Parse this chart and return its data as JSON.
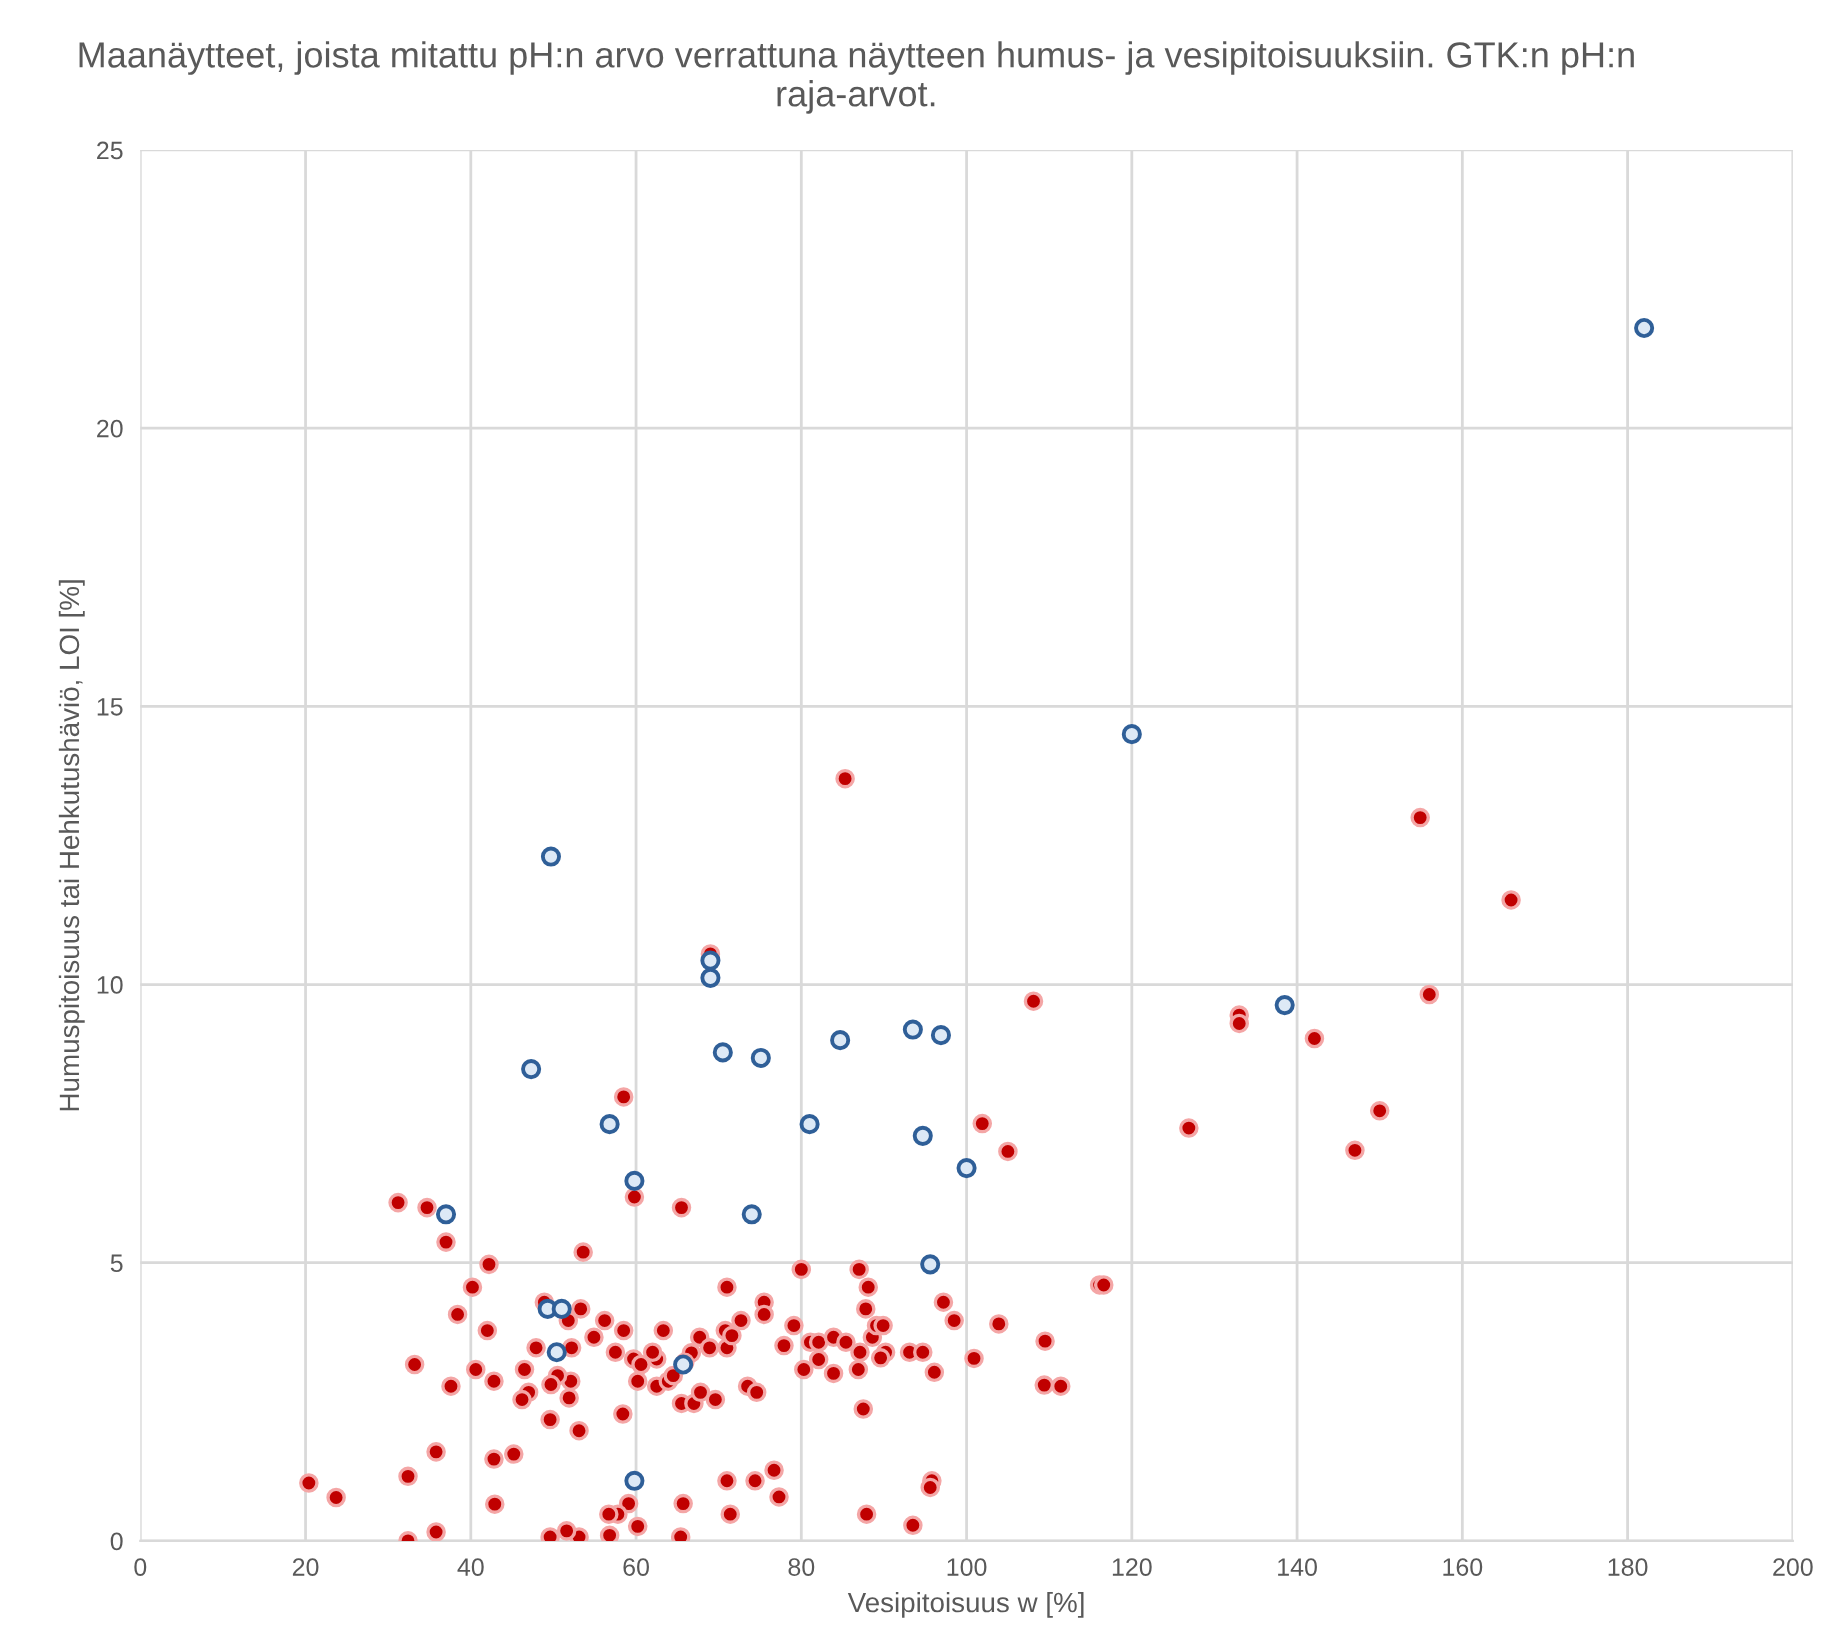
{
  "chart_data": {
    "type": "scatter",
    "title": "Maanäytteet, joista mitattu pH:n arvo verrattuna näytteen humus- ja vesipitoisuuksiin. GTK:n pH:n raja-arvot.",
    "xlabel": "Vesipitoisuus w [%]",
    "ylabel": "Humuspitoisuus tai Hehkutushäviö, LOI [%]",
    "xlim": [
      0,
      200
    ],
    "ylim": [
      0,
      25
    ],
    "xticks": [
      0,
      20,
      40,
      60,
      80,
      100,
      120,
      140,
      160,
      180,
      200
    ],
    "yticks": [
      0,
      5,
      10,
      15,
      20,
      25
    ],
    "grid": true,
    "marker": "circle",
    "series": [
      {
        "color": "#c00000",
        "x": [
          85.3,
          69.0,
          108.1,
          58.5,
          101.9,
          105.0,
          59.8,
          65.5,
          53.6,
          80.0,
          87.0,
          71.0,
          88.1,
          75.5,
          75.5,
          87.8,
          97.2,
          98.5,
          103.9,
          109.5,
          111.4,
          51.8,
          56.2,
          58.5,
          52.2,
          54.9,
          57.5,
          63.3,
          59.7,
          60.6,
          62.5,
          62.0,
          66.7,
          67.7,
          68.9,
          70.8,
          71.0,
          71.6,
          72.7,
          79.1,
          77.9,
          81.1,
          82.1,
          83.9,
          85.4,
          87.1,
          88.6,
          89.1,
          89.9,
          90.2,
          89.6,
          93.1,
          94.7,
          96.1,
          100.9,
          80.3,
          82.1,
          83.9,
          86.9,
          87.5,
          52.1,
          51.9,
          60.2,
          62.5,
          63.9,
          64.5,
          65.9,
          65.5,
          67.0,
          69.6,
          67.8,
          73.5,
          74.6,
          58.4,
          53.1,
          71.0,
          74.4,
          76.7,
          77.3,
          71.4,
          65.7,
          59.1,
          57.8,
          56.7,
          60.2,
          56.8,
          53.1,
          51.6,
          65.4,
          87.9,
          93.5,
          95.8,
          95.6,
          31.2,
          34.7,
          37.0,
          42.2,
          40.2,
          38.4,
          42.0,
          33.2,
          40.6,
          42.8,
          37.6,
          35.8,
          42.8,
          45.2,
          32.4,
          20.4,
          23.7,
          42.9,
          32.4,
          35.8,
          48.9,
          53.3,
          47.9,
          46.5,
          50.5,
          49.7,
          47.0,
          46.2,
          49.6,
          49.6,
          154.9,
          165.9,
          156.0,
          133.0,
          133.0,
          142.1,
          126.9,
          150.0,
          147.0,
          116.1,
          116.6,
          109.4
        ],
        "values": [
          13.7,
          10.55,
          9.7,
          7.98,
          7.5,
          7.0,
          6.18,
          5.99,
          5.19,
          4.88,
          4.88,
          4.56,
          4.56,
          4.29,
          4.07,
          4.17,
          4.29,
          3.96,
          3.9,
          3.59,
          2.78,
          3.96,
          3.96,
          3.78,
          3.47,
          3.66,
          3.39,
          3.78,
          3.27,
          3.17,
          3.27,
          3.39,
          3.38,
          3.66,
          3.47,
          3.78,
          3.47,
          3.69,
          3.96,
          3.87,
          3.51,
          3.57,
          3.57,
          3.66,
          3.57,
          3.39,
          3.66,
          3.87,
          3.87,
          3.39,
          3.29,
          3.39,
          3.39,
          3.03,
          3.28,
          3.08,
          3.26,
          3.01,
          3.08,
          2.37,
          2.87,
          2.57,
          2.87,
          2.78,
          2.87,
          2.97,
          3.21,
          2.47,
          2.47,
          2.54,
          2.67,
          2.78,
          2.67,
          2.28,
          1.98,
          1.08,
          1.08,
          1.27,
          0.79,
          0.48,
          0.67,
          0.67,
          0.48,
          0.48,
          0.26,
          0.1,
          0.07,
          0.18,
          0.07,
          0.48,
          0.28,
          1.08,
          0.96,
          6.08,
          5.99,
          5.37,
          4.97,
          4.56,
          4.07,
          3.78,
          3.17,
          3.08,
          2.87,
          2.78,
          1.6,
          1.47,
          1.56,
          1.16,
          1.04,
          0.78,
          0.66,
          0.0,
          0.16,
          4.29,
          4.17,
          3.47,
          3.08,
          2.97,
          2.81,
          2.67,
          2.54,
          2.18,
          0.07,
          13.0,
          11.52,
          9.82,
          9.45,
          9.3,
          9.03,
          7.42,
          7.73,
          7.02,
          4.6,
          4.6,
          2.8
        ]
      },
      {
        "color": "#2f5f98",
        "x": [
          182.0,
          120.0,
          49.7,
          69.0,
          69.0,
          47.3,
          70.5,
          75.1,
          84.7,
          93.5,
          96.9,
          138.5,
          56.8,
          81.0,
          94.7,
          100.0,
          59.8,
          37.0,
          74.0,
          95.6,
          49.3,
          51.0,
          50.4,
          65.7,
          59.8
        ],
        "values": [
          21.8,
          14.5,
          12.3,
          10.43,
          10.12,
          8.48,
          8.78,
          8.68,
          9.0,
          9.19,
          9.09,
          9.63,
          7.49,
          7.49,
          7.28,
          6.7,
          6.47,
          5.87,
          5.87,
          4.97,
          4.17,
          4.17,
          3.39,
          3.17,
          1.08
        ]
      }
    ]
  }
}
